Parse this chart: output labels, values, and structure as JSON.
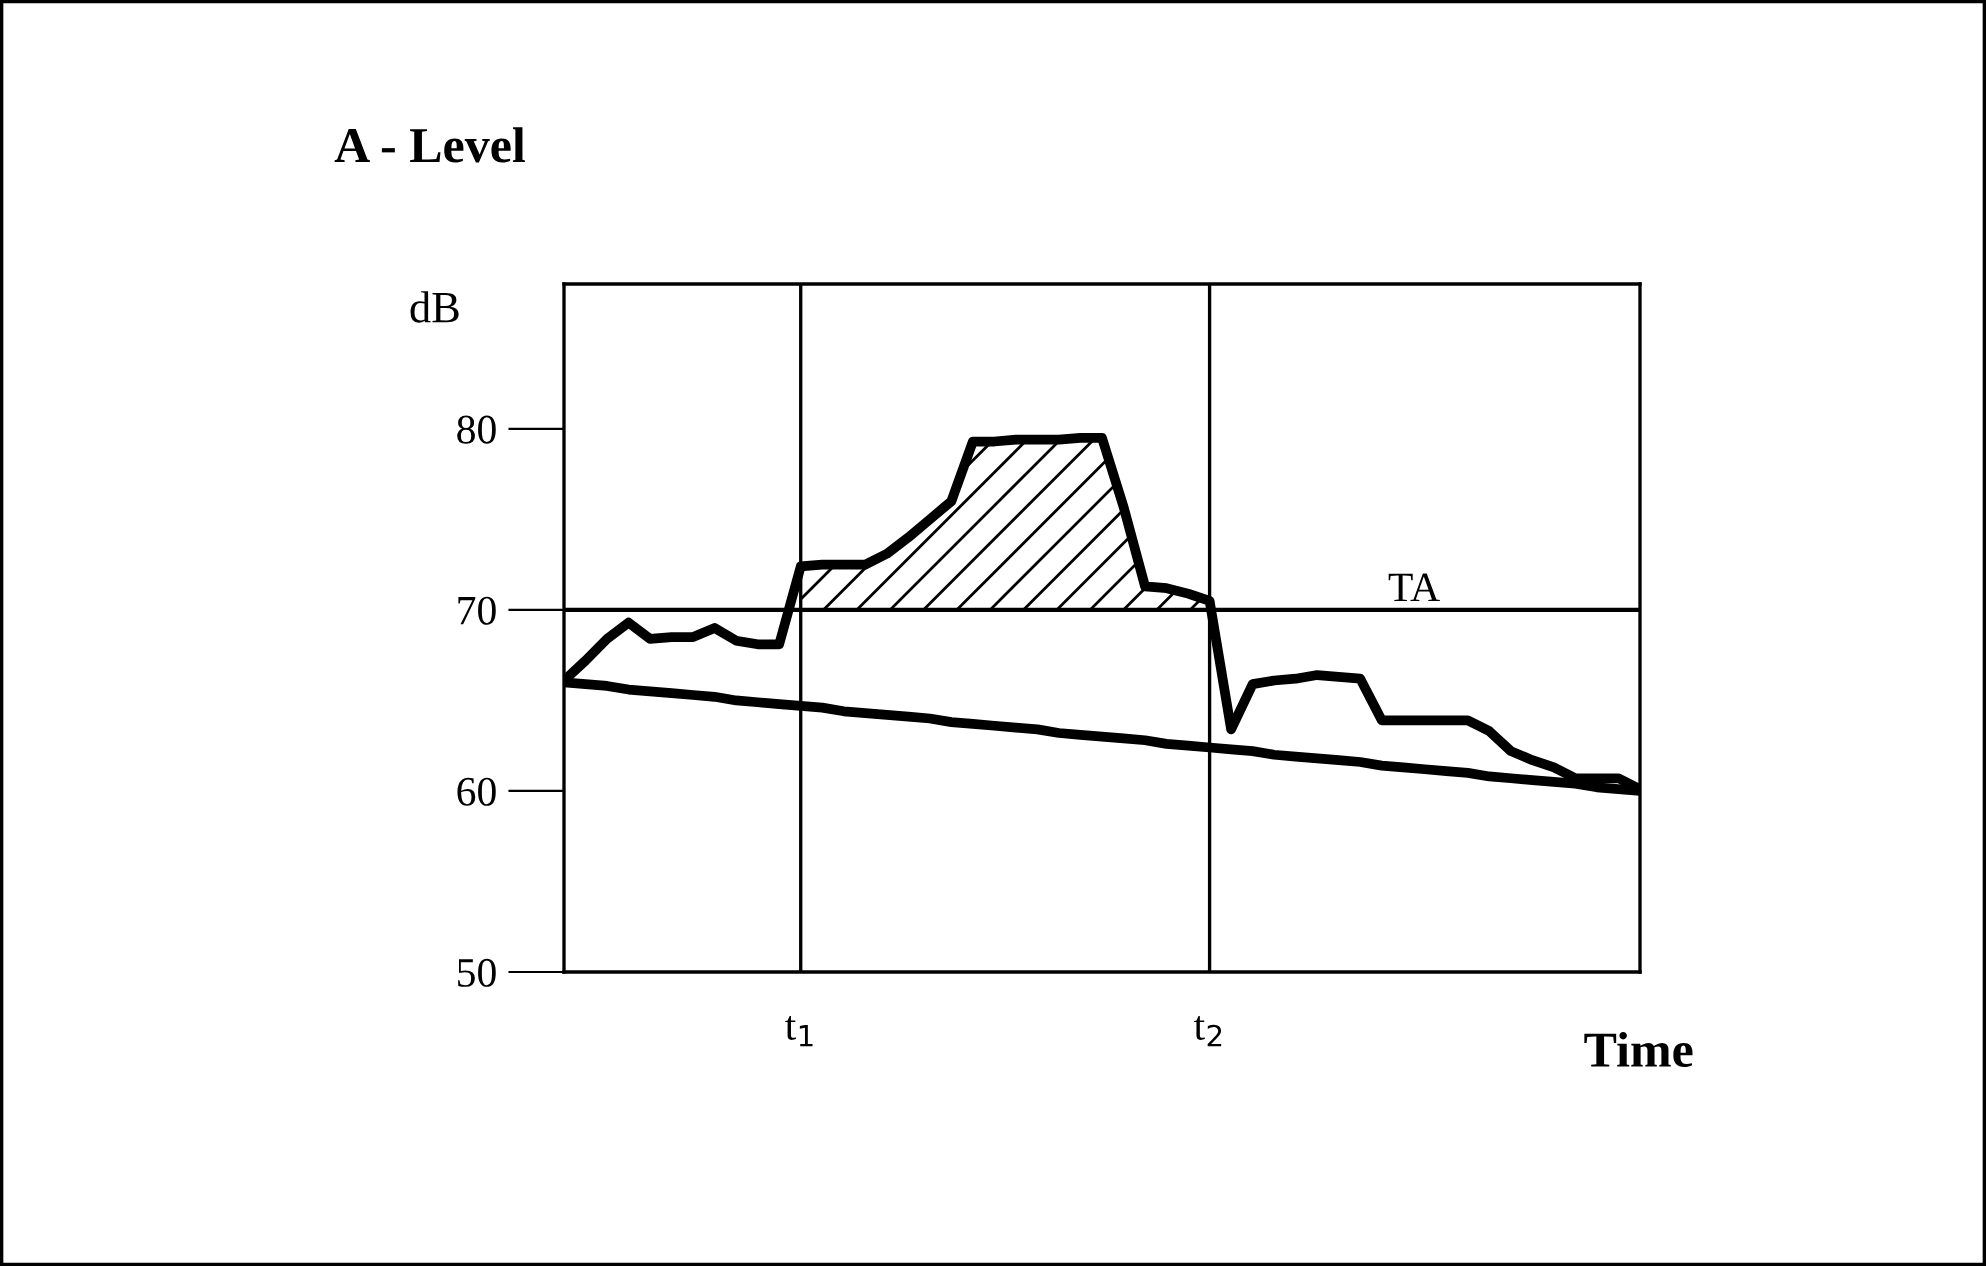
{
  "chart_data": {
    "type": "line",
    "title": "A - Level",
    "xlabel": "Time",
    "ylabel": "dB",
    "ylim": [
      50,
      88
    ],
    "yticks": [
      50,
      60,
      70,
      80
    ],
    "categories": [
      null,
      null,
      null,
      null,
      null,
      null,
      null,
      null,
      null,
      null,
      null,
      "t$_{1}$",
      null,
      null,
      null,
      null,
      null,
      null,
      null,
      null,
      null,
      null,
      null,
      null,
      null,
      null,
      null,
      null,
      null,
      null,
      "t$_{2}$",
      null,
      null,
      null,
      null,
      null,
      null,
      null,
      null,
      null,
      null,
      null,
      null,
      null,
      null,
      null,
      null,
      null,
      null,
      null,
      null
    ],
    "ref_lines": [
      {
        "axis": "y",
        "value": 70,
        "label": "TA"
      },
      {
        "axis": "x",
        "value": "t$_{1}$"
      },
      {
        "axis": "x",
        "value": "t$_{2}$"
      }
    ],
    "series": [
      {
        "color": "#000000",
        "values": [
          66.1,
          67.2,
          68.4,
          69.3,
          68.4,
          68.5,
          68.5,
          69.0,
          68.3,
          68.1,
          68.1,
          72.4,
          72.5,
          72.5,
          72.5,
          73.1,
          74.0,
          75.0,
          76.0,
          79.3,
          79.3,
          79.4,
          79.4,
          79.4,
          79.5,
          79.5,
          75.7,
          71.3,
          71.2,
          70.9,
          70.5,
          63.4,
          65.9,
          66.1,
          66.2,
          66.4,
          66.3,
          66.2,
          63.9,
          63.9,
          63.9,
          63.9,
          63.9,
          63.3,
          62.2,
          61.7,
          61.3,
          60.7,
          60.7,
          60.7,
          60.1
        ]
      },
      {
        "type": "area",
        "color": "#000000",
        "values": [
          null,
          null,
          null,
          null,
          null,
          null,
          null,
          null,
          null,
          null,
          null,
          72.4,
          72.5,
          72.5,
          72.5,
          73.1,
          74.0,
          75.0,
          76.0,
          79.3,
          79.3,
          79.4,
          79.4,
          79.4,
          79.5,
          79.5,
          75.7,
          71.3,
          71.2,
          70.9,
          70.5,
          null,
          null,
          null,
          null,
          null,
          null,
          null,
          null,
          null,
          null,
          null,
          null,
          null,
          null,
          null,
          null,
          null,
          null,
          null,
          null
        ]
      },
      {
        "color": "#000000",
        "values": [
          66.0,
          65.9,
          65.8,
          65.6,
          65.5,
          65.4,
          65.3,
          65.2,
          65.0,
          64.9,
          64.8,
          64.7,
          64.6,
          64.4,
          64.3,
          64.2,
          64.1,
          64.0,
          63.8,
          63.7,
          63.6,
          63.5,
          63.4,
          63.2,
          63.1,
          63.0,
          62.9,
          62.8,
          62.6,
          62.5,
          62.4,
          62.3,
          62.2,
          62.0,
          61.9,
          61.8,
          61.7,
          61.6,
          61.4,
          61.3,
          61.2,
          61.1,
          61.0,
          60.8,
          60.7,
          60.6,
          60.5,
          60.4,
          60.2,
          60.1,
          60.0
        ]
      }
    ],
    "grid": false
  }
}
